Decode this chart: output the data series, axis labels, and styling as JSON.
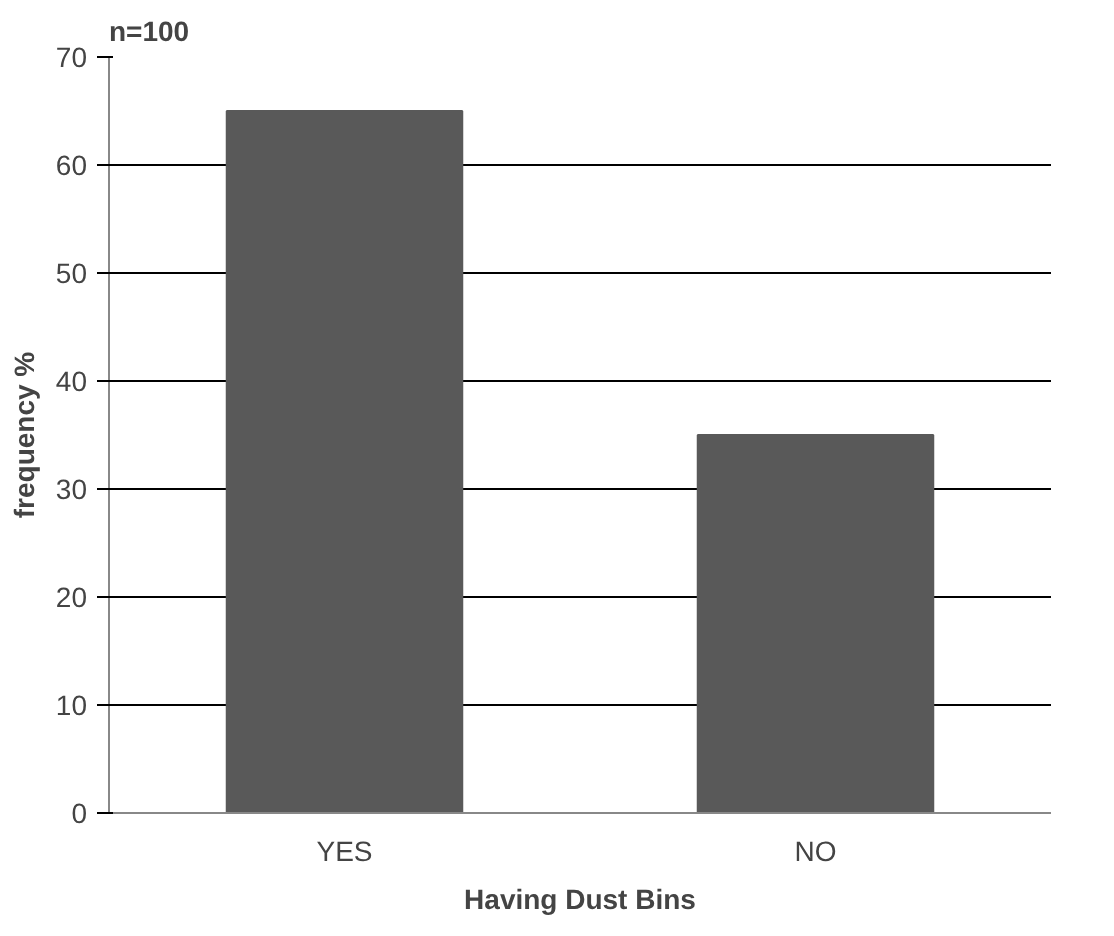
{
  "chart_data": {
    "type": "bar",
    "title": "n=100",
    "xlabel": "Having Dust Bins",
    "ylabel": "frequency %",
    "categories": [
      "YES",
      "NO"
    ],
    "values": [
      65,
      35
    ],
    "color": "#595959",
    "ylim": [
      0,
      70
    ],
    "yticks": [
      0,
      10,
      20,
      30,
      40,
      50,
      60,
      70
    ],
    "grid": "y"
  }
}
